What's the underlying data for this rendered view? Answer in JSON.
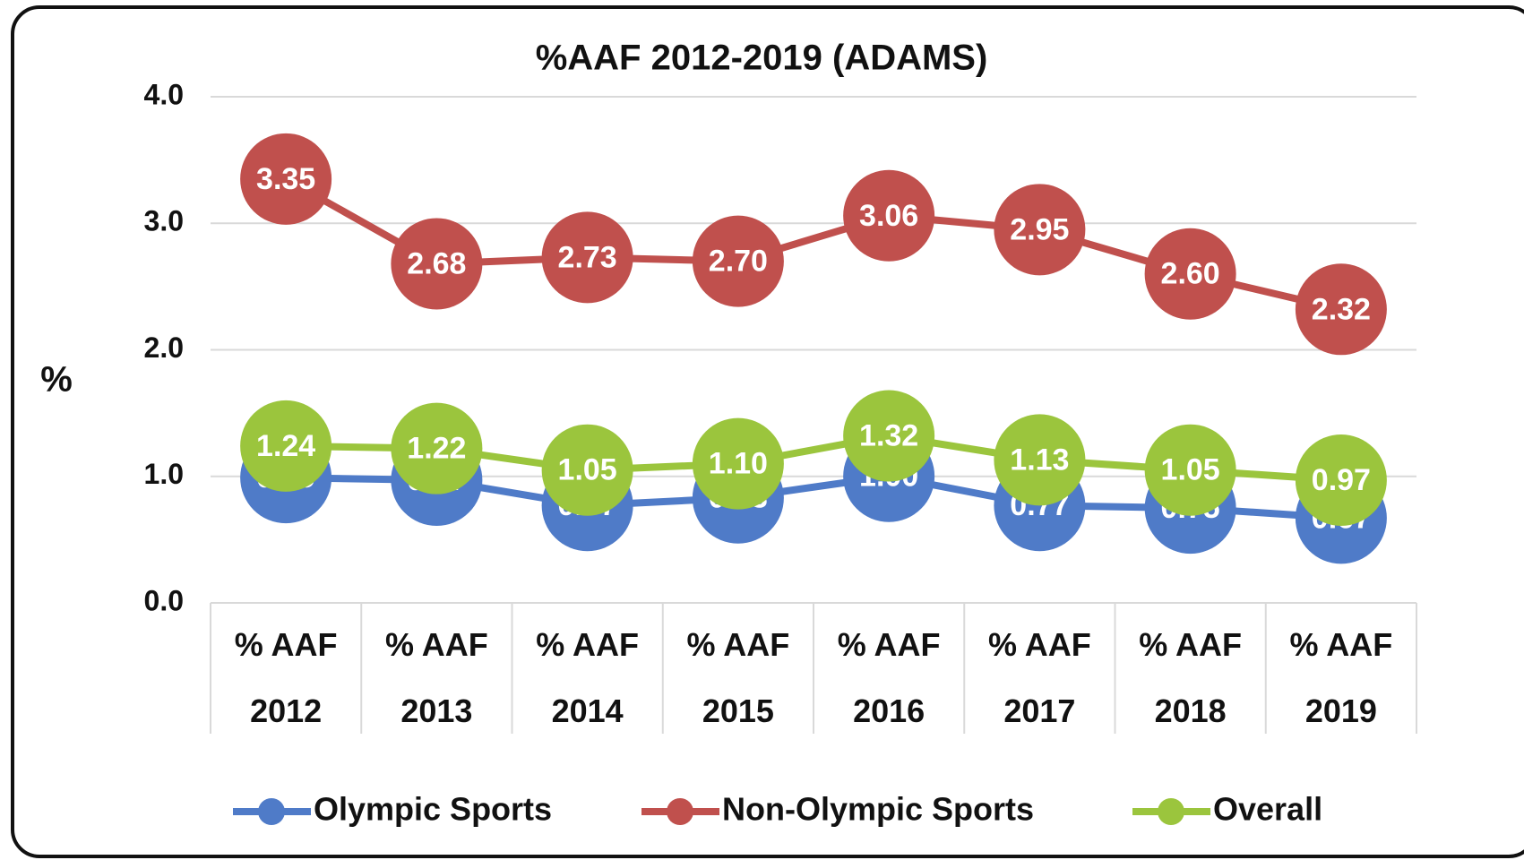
{
  "chart_data": {
    "type": "line",
    "title": "%AAF 2012-2019 (ADAMS)",
    "y_label": "%",
    "categories": [
      "% AAF 2012",
      "% AAF 2013",
      "% AAF 2014",
      "% AAF 2015",
      "% AAF 2016",
      "% AAF 2017",
      "% AAF 2018",
      "% AAF 2019"
    ],
    "series": [
      {
        "name": "Olympic Sports",
        "color": "#4f7bc8",
        "values": [
          0.99,
          0.97,
          0.77,
          0.83,
          1.0,
          0.77,
          0.75,
          0.67
        ],
        "value_labels": [
          "0.99",
          "0.97",
          "0.77",
          "0.83",
          "1.00",
          "0.77",
          "0.75",
          "0.67"
        ]
      },
      {
        "name": "Non-Olympic Sports",
        "color": "#c0504d",
        "values": [
          3.35,
          2.68,
          2.73,
          2.7,
          3.06,
          2.95,
          2.6,
          2.32
        ],
        "value_labels": [
          "3.35",
          "2.68",
          "2.73",
          "2.70",
          "3.06",
          "2.95",
          "2.60",
          "2.32"
        ]
      },
      {
        "name": "Overall",
        "color": "#9bc53d",
        "values": [
          1.24,
          1.22,
          1.05,
          1.1,
          1.32,
          1.13,
          1.05,
          0.97
        ],
        "value_labels": [
          "1.24",
          "1.22",
          "1.05",
          "1.10",
          "1.32",
          "1.13",
          "1.05",
          "0.97"
        ]
      }
    ],
    "ylim": [
      0,
      4
    ],
    "yticks": [
      {
        "value": 0,
        "label": "0.0"
      },
      {
        "value": 1,
        "label": "1.0"
      },
      {
        "value": 2,
        "label": "2.0"
      },
      {
        "value": 3,
        "label": "3.0"
      },
      {
        "value": 4,
        "label": "4.0"
      }
    ],
    "grid": true,
    "legend": "bottom"
  }
}
